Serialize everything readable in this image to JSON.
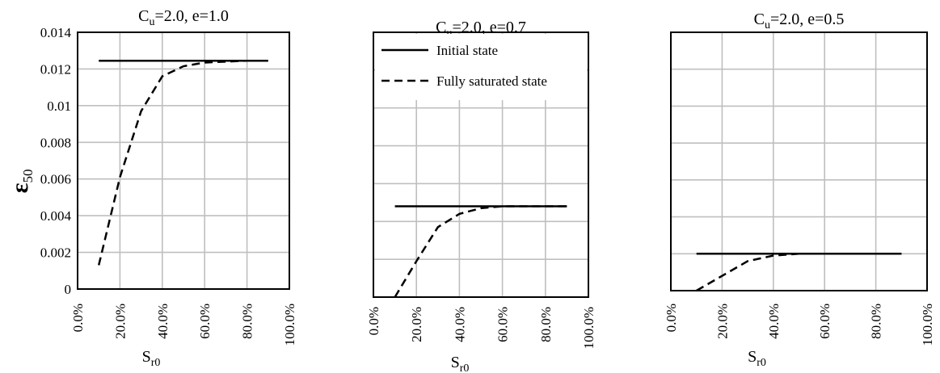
{
  "chart_data": [
    {
      "type": "line",
      "title": "Cu=2.0, e=1.0",
      "title_parts": {
        "base": "C",
        "sub": "u",
        "rest": "=2.0, e=1.0"
      },
      "xlabel_parts": {
        "base": "S",
        "sub": "r0"
      },
      "ylabel_parts": {
        "base": "ε",
        "sub": "50"
      },
      "xlim": [
        0,
        1
      ],
      "ylim": [
        0,
        0.014
      ],
      "x_ticks": [
        "0.0%",
        "20.0%",
        "40.0%",
        "60.0%",
        "80.0%",
        "100.0%"
      ],
      "y_ticks": [
        "0",
        "0.002",
        "0.004",
        "0.006",
        "0.008",
        "0.01",
        "0.012",
        "0.014"
      ],
      "grid": true,
      "series": [
        {
          "name": "Initial state",
          "style": "solid",
          "x": [
            0.1,
            0.9
          ],
          "y": [
            0.01245,
            0.01245
          ]
        },
        {
          "name": "Fully saturated state",
          "style": "dashed",
          "x": [
            0.1,
            0.2,
            0.3,
            0.4,
            0.5,
            0.6,
            0.7,
            0.8,
            0.9
          ],
          "y": [
            0.0013,
            0.0061,
            0.0097,
            0.0116,
            0.01215,
            0.01235,
            0.0124,
            0.01245,
            0.01245
          ]
        }
      ]
    },
    {
      "type": "line",
      "title": "Cu=2.0, e=0.7",
      "title_parts": {
        "base": "C",
        "sub": "u",
        "rest": "=2.0, e=0.7"
      },
      "xlabel_parts": {
        "base": "S",
        "sub": "r0"
      },
      "xlim": [
        0,
        1
      ],
      "ylim": [
        0,
        0.014
      ],
      "x_ticks": [
        "0.0%",
        "20.0%",
        "40.0%",
        "60.0%",
        "80.0%",
        "100.0%"
      ],
      "grid": true,
      "legend": {
        "position": "top-left",
        "entries": [
          "Initial state",
          "Fully saturated state"
        ]
      },
      "series": [
        {
          "name": "Initial state",
          "style": "solid",
          "x": [
            0.1,
            0.9
          ],
          "y": [
            0.0048,
            0.0048
          ]
        },
        {
          "name": "Fully saturated state",
          "style": "dashed",
          "x": [
            0.1,
            0.2,
            0.3,
            0.4,
            0.5,
            0.6,
            0.7,
            0.8,
            0.9
          ],
          "y": [
            0.0,
            0.0019,
            0.0037,
            0.0044,
            0.0047,
            0.0048,
            0.0048,
            0.0048,
            0.0048
          ]
        }
      ]
    },
    {
      "type": "line",
      "title": "Cu=2.0, e=0.5",
      "title_parts": {
        "base": "C",
        "sub": "u",
        "rest": "=2.0, e=0.5"
      },
      "xlabel_parts": {
        "base": "S",
        "sub": "r0"
      },
      "xlim": [
        0,
        1
      ],
      "ylim": [
        0,
        0.014
      ],
      "x_ticks": [
        "0.0%",
        "20.0%",
        "40.0%",
        "60.0%",
        "80.0%",
        "100.0%"
      ],
      "grid": true,
      "series": [
        {
          "name": "Initial state",
          "style": "solid",
          "x": [
            0.1,
            0.9
          ],
          "y": [
            0.002,
            0.002
          ]
        },
        {
          "name": "Fully saturated state",
          "style": "dashed",
          "x": [
            0.1,
            0.2,
            0.3,
            0.4,
            0.5,
            0.6,
            0.7,
            0.8,
            0.9
          ],
          "y": [
            0.0,
            0.0008,
            0.0016,
            0.0019,
            0.002,
            0.002,
            0.002,
            0.002,
            0.002
          ]
        }
      ]
    }
  ]
}
